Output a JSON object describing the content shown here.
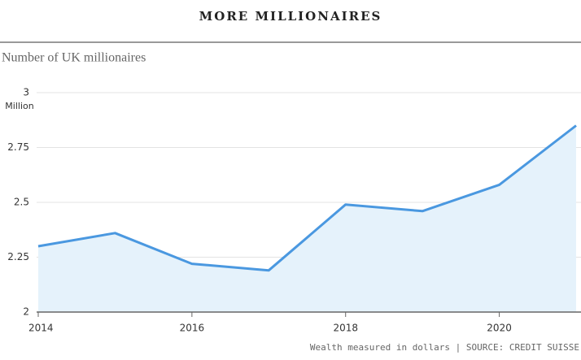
{
  "chart_data": {
    "type": "area-line",
    "title": "MORE MILLIONAIRES",
    "subtitle": "Number of UK millionaires",
    "y_unit": "Million",
    "x": [
      2014,
      2015,
      2016,
      2017,
      2018,
      2019,
      2020,
      2021
    ],
    "values": [
      2.3,
      2.36,
      2.22,
      2.19,
      2.49,
      2.46,
      2.58,
      2.85
    ],
    "color": "#4a98e0",
    "fill": "#e5f2fb",
    "xlim": [
      2014,
      2021
    ],
    "xticks": [
      2014,
      2016,
      2018,
      2020
    ],
    "ylim": [
      2,
      3
    ],
    "yticks": [
      2,
      2.25,
      2.5,
      2.75,
      3
    ],
    "grid": true,
    "note": "Wealth measured in dollars | SOURCE: CREDIT SUISSE"
  }
}
